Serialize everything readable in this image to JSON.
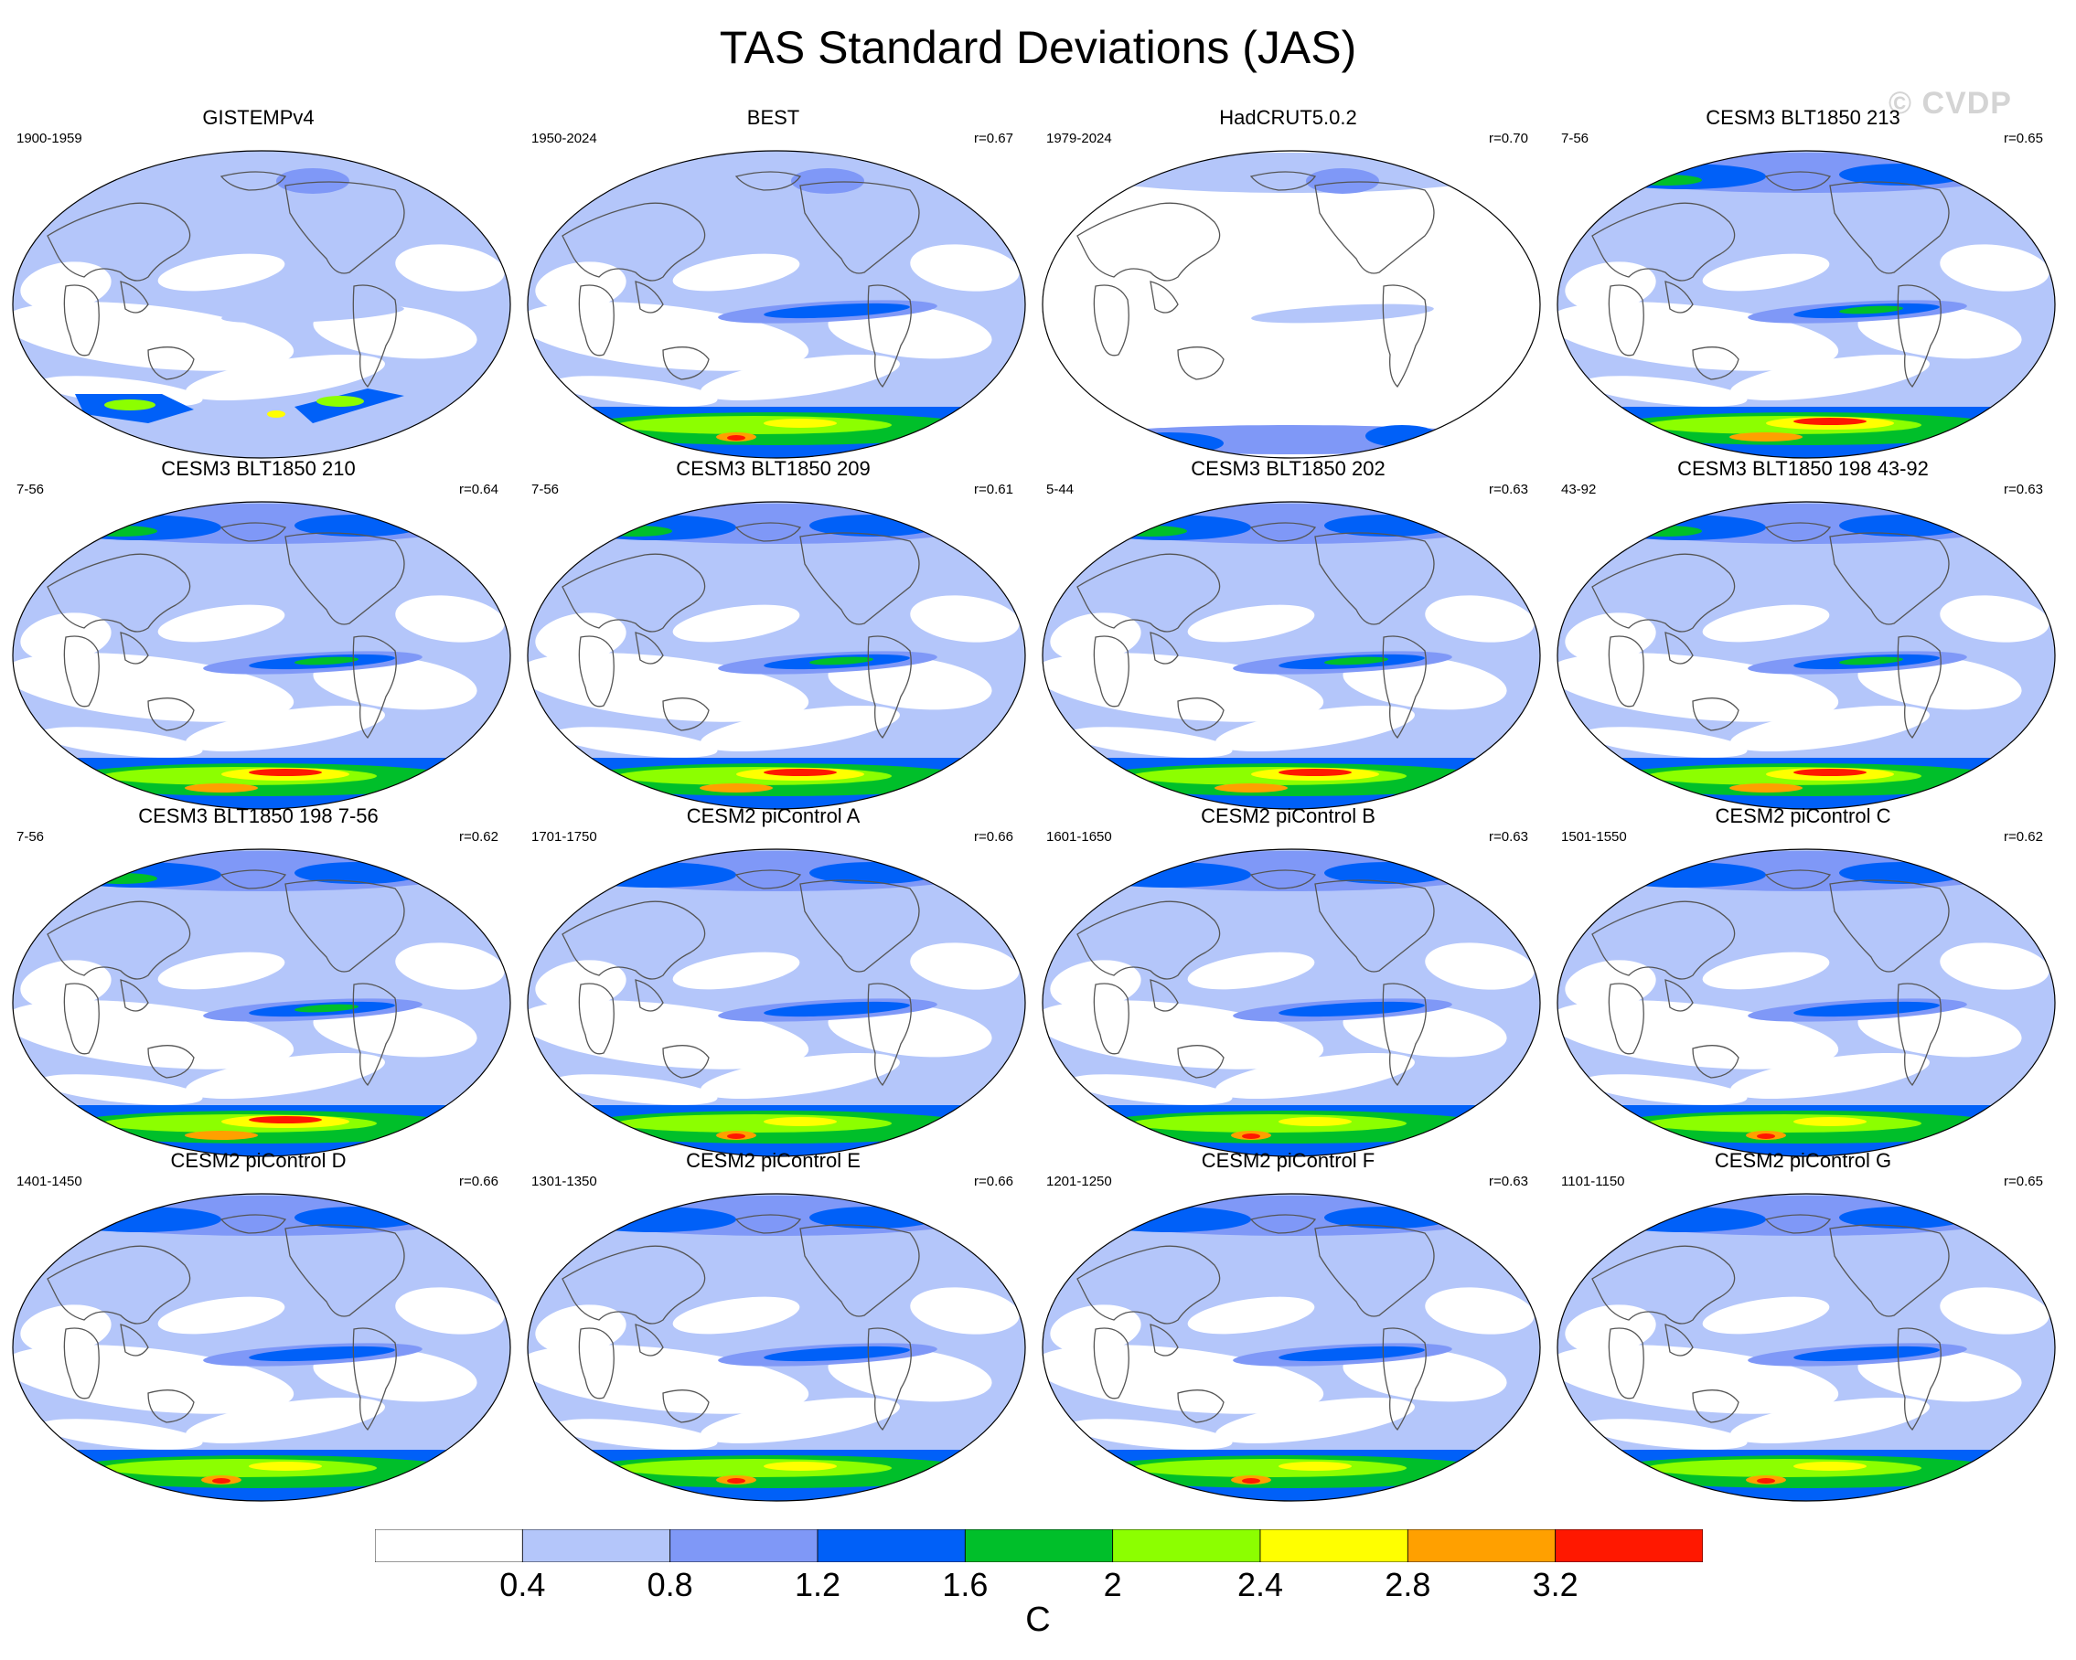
{
  "title": "TAS Standard Deviations (JAS)",
  "watermark": "© CVDP",
  "panels": [
    {
      "title": "GISTEMPv4",
      "years": "1900-1959",
      "r": "",
      "pattern": "obs1"
    },
    {
      "title": "BEST",
      "years": "1950-2024",
      "r": "r=0.67",
      "pattern": "obs2"
    },
    {
      "title": "HadCRUT5.0.2",
      "years": "1979-2024",
      "r": "r=0.70",
      "pattern": "obs3"
    },
    {
      "title": "CESM3 BLT1850 213",
      "years": "7-56",
      "r": "r=0.65",
      "pattern": "cesm3"
    },
    {
      "title": "CESM3 BLT1850 210",
      "years": "7-56",
      "r": "r=0.64",
      "pattern": "cesm3"
    },
    {
      "title": "CESM3 BLT1850 209",
      "years": "7-56",
      "r": "r=0.61",
      "pattern": "cesm3"
    },
    {
      "title": "CESM3 BLT1850 202",
      "years": "5-44",
      "r": "r=0.63",
      "pattern": "cesm3"
    },
    {
      "title": "CESM3 BLT1850 198 43-92",
      "years": "43-92",
      "r": "r=0.63",
      "pattern": "cesm3"
    },
    {
      "title": "CESM3 BLT1850 198 7-56",
      "years": "7-56",
      "r": "r=0.62",
      "pattern": "cesm3"
    },
    {
      "title": "CESM2 piControl A",
      "years": "1701-1750",
      "r": "r=0.66",
      "pattern": "cesm2"
    },
    {
      "title": "CESM2 piControl B",
      "years": "1601-1650",
      "r": "r=0.63",
      "pattern": "cesm2"
    },
    {
      "title": "CESM2 piControl C",
      "years": "1501-1550",
      "r": "r=0.62",
      "pattern": "cesm2"
    },
    {
      "title": "CESM2 piControl D",
      "years": "1401-1450",
      "r": "r=0.66",
      "pattern": "cesm2"
    },
    {
      "title": "CESM2 piControl E",
      "years": "1301-1350",
      "r": "r=0.66",
      "pattern": "cesm2"
    },
    {
      "title": "CESM2 piControl F",
      "years": "1201-1250",
      "r": "r=0.63",
      "pattern": "cesm2"
    },
    {
      "title": "CESM2 piControl G",
      "years": "1101-1150",
      "r": "r=0.65",
      "pattern": "cesm2"
    }
  ],
  "colorbar": {
    "units": "C",
    "levels": [
      "0.4",
      "0.8",
      "1.2",
      "1.6",
      "2",
      "2.4",
      "2.8",
      "3.2"
    ],
    "colors": [
      "#ffffff",
      "#b4c6fa",
      "#7f98f7",
      "#0060f8",
      "#00bf2a",
      "#8cff00",
      "#ffff00",
      "#ffa000",
      "#ff1800"
    ]
  },
  "map_colors": {
    "ocean_low": "#ffffff",
    "level1": "#b4c6fa",
    "level2": "#7f98f7",
    "level3": "#0060f8",
    "level4": "#00bf2a",
    "level5": "#8cff00",
    "level6": "#ffff00",
    "level7": "#ffa000",
    "level8": "#ff1800",
    "coast": "#555555"
  }
}
